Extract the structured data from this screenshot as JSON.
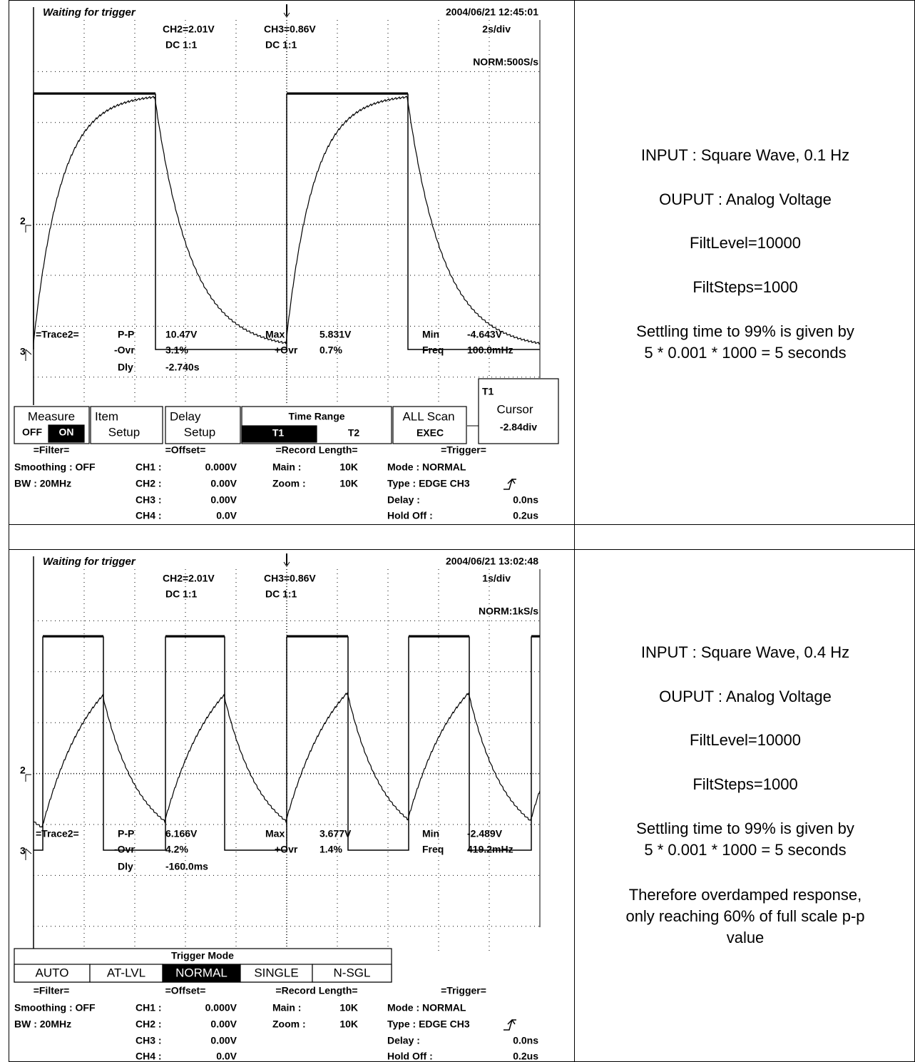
{
  "rows": [
    {
      "scope": {
        "status": "Waiting for trigger",
        "datetime": "2004/06/21 12:45:01",
        "ch2_scale": "CH2=2.01V",
        "ch2_coupling": "DC 1:1",
        "ch3_scale": "CH3=0.86V",
        "ch3_coupling": "DC 1:1",
        "timebase": "2s/div",
        "sampling": "NORM:500S/s",
        "markers": [
          "2",
          "3"
        ],
        "measure": {
          "trace": "=Trace2=",
          "pp_label": "P-P",
          "pp": "10.47V",
          "max_label": "Max",
          "max": "5.831V",
          "min_label": "Min",
          "min": "-4.643V",
          "novr_label": "-Ovr",
          "novr": "3.1%",
          "povr_label": "+Ovr",
          "povr": "0.7%",
          "freq_label": "Freq",
          "freq": "100.0mHz",
          "dly_label": "Dly",
          "dly": "-2.740s"
        },
        "menu": {
          "measure_title": "Measure",
          "measure_off": "OFF",
          "measure_on": "ON",
          "item_title": "Item",
          "item_sub": "Setup",
          "delay_title": "Delay",
          "delay_sub": "Setup",
          "range_title": "Time Range",
          "range_t1": "T1",
          "range_t2": "T2",
          "scan_title": "ALL Scan",
          "scan_exec": "EXEC",
          "cursor_name": "T1",
          "cursor_title": "Cursor",
          "cursor_value": "-2.84div"
        },
        "settings": {
          "filter_title": "=Filter=",
          "smoothing": "Smoothing : OFF",
          "bw": "BW : 20MHz",
          "offset_title": "=Offset=",
          "ch1_label": "CH1 :",
          "ch1": "0.000V",
          "ch2_label": "CH2 :",
          "ch2": "0.00V",
          "ch3_label": "CH3 :",
          "ch3": "0.00V",
          "ch4_label": "CH4 :",
          "ch4": "0.0V",
          "record_title": "=Record Length=",
          "main_label": "Main :",
          "main": "10K",
          "zoom_label": "Zoom :",
          "zoom": "10K",
          "trigger_title": "=Trigger=",
          "mode": "Mode : NORMAL",
          "type": "Type : EDGE CH3",
          "delay_label": "Delay :",
          "delay": "0.0ns",
          "holdoff_label": "Hold Off :",
          "holdoff": "0.2us"
        }
      },
      "notes": [
        "INPUT : Square Wave, 0.1 Hz",
        "OUPUT : Analog Voltage",
        "FiltLevel=10000",
        "FiltSteps=1000",
        "Settling time to 99% is given by\n5 * 0.001 * 1000 = 5 seconds"
      ]
    },
    {
      "scope": {
        "status": "Waiting for trigger",
        "datetime": "2004/06/21 13:02:48",
        "ch2_scale": "CH2=2.01V",
        "ch2_coupling": "DC 1:1",
        "ch3_scale": "CH3=0.86V",
        "ch3_coupling": "DC 1:1",
        "timebase": "1s/div",
        "sampling": "NORM:1kS/s",
        "markers": [
          "2",
          "3"
        ],
        "measure": {
          "trace": "=Trace2=",
          "pp_label": "P-P",
          "pp": "6.166V",
          "max_label": "Max",
          "max": "3.677V",
          "min_label": "Min",
          "min": "-2.489V",
          "novr_label": "-Ovr",
          "novr": "4.2%",
          "povr_label": "+Ovr",
          "povr": "1.4%",
          "freq_label": "Freq",
          "freq": "419.2mHz",
          "dly_label": "Dly",
          "dly": "-160.0ms"
        },
        "menu": {
          "title": "Trigger Mode",
          "options": [
            "AUTO",
            "AT-LVL",
            "NORMAL",
            "SINGLE",
            "N-SGL"
          ]
        },
        "settings": {
          "filter_title": "=Filter=",
          "smoothing": "Smoothing : OFF",
          "bw": "BW : 20MHz",
          "offset_title": "=Offset=",
          "ch1_label": "CH1 :",
          "ch1": "0.000V",
          "ch2_label": "CH2 :",
          "ch2": "0.00V",
          "ch3_label": "CH3 :",
          "ch3": "0.00V",
          "ch4_label": "CH4 :",
          "ch4": "0.0V",
          "record_title": "=Record Length=",
          "main_label": "Main :",
          "main": "10K",
          "zoom_label": "Zoom :",
          "zoom": "10K",
          "trigger_title": "=Trigger=",
          "mode": "Mode : NORMAL",
          "type": "Type : EDGE CH3",
          "delay_label": "Delay :",
          "delay": "0.0ns",
          "holdoff_label": "Hold Off :",
          "holdoff": "0.2us"
        }
      },
      "notes": [
        "INPUT : Square Wave, 0.4 Hz",
        "OUPUT : Analog Voltage",
        "FiltLevel=10000",
        "FiltSteps=1000",
        "Settling time to 99% is given by\n5 * 0.001 * 1000 = 5 seconds",
        "Therefore overdamped response,\nonly reaching 60% of full scale p-p\nvalue"
      ]
    }
  ]
}
